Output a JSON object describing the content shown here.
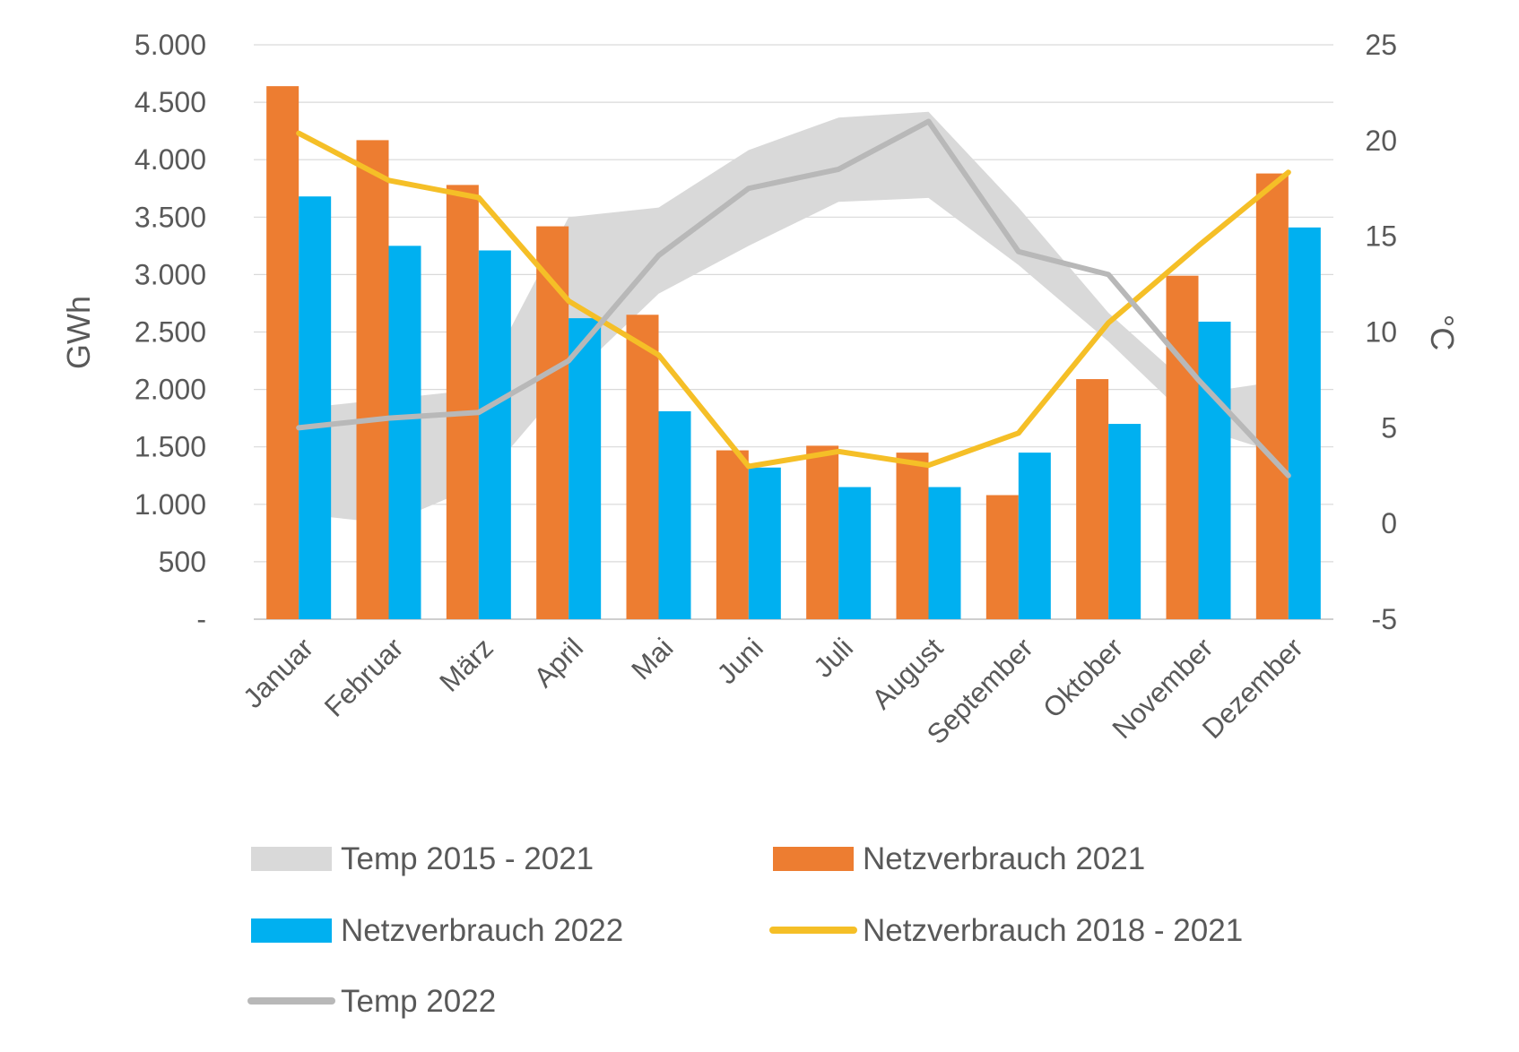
{
  "chart_data": {
    "type": "bar",
    "title": "",
    "categories": [
      "Januar",
      "Februar",
      "März",
      "April",
      "Mai",
      "Juni",
      "Juli",
      "August",
      "September",
      "Oktober",
      "November",
      "Dezember"
    ],
    "y_left": {
      "label": "GWh",
      "ylim": [
        0,
        5000
      ],
      "ticks": [
        0,
        500,
        1000,
        1500,
        2000,
        2500,
        3000,
        3500,
        4000,
        4500,
        5000
      ],
      "tick_labels": [
        "-",
        "500",
        "1.000",
        "1.500",
        "2.000",
        "2.500",
        "3.000",
        "3.500",
        "4.000",
        "4.500",
        "5.000"
      ]
    },
    "y_right": {
      "label": "°C",
      "ylim": [
        -5,
        25
      ],
      "ticks": [
        -5,
        0,
        5,
        10,
        15,
        20,
        25
      ],
      "tick_labels": [
        "-5",
        "0",
        "5",
        "10",
        "15",
        "20",
        "25"
      ]
    },
    "grid": true,
    "legend_position": "bottom",
    "series": [
      {
        "name": "Temp 2015 - 2021",
        "kind": "range-area",
        "axis": "right",
        "color": "#d9d9d9",
        "low": [
          0.5,
          0.0,
          2.0,
          7.5,
          12.0,
          14.5,
          16.8,
          17.0,
          13.5,
          9.5,
          5.0,
          3.5
        ],
        "high": [
          6.0,
          6.5,
          7.0,
          16.0,
          16.5,
          19.5,
          21.2,
          21.5,
          16.5,
          11.0,
          6.8,
          7.5
        ]
      },
      {
        "name": "Netzverbrauch 2021",
        "kind": "bar",
        "axis": "left",
        "color": "#ed7d31",
        "values": [
          4640,
          4170,
          3780,
          3420,
          2650,
          1470,
          1510,
          1450,
          1080,
          2090,
          2990,
          3880
        ]
      },
      {
        "name": "Netzverbrauch 2022",
        "kind": "bar",
        "axis": "left",
        "color": "#00b0f0",
        "values": [
          3680,
          3250,
          3210,
          2620,
          1810,
          1320,
          1150,
          1150,
          1450,
          1700,
          2590,
          3410
        ]
      },
      {
        "name": "Netzverbrauch 2018 - 2021",
        "kind": "line",
        "axis": "left",
        "color": "#f5bf27",
        "values": [
          4230,
          3820,
          3670,
          2770,
          2300,
          1330,
          1460,
          1340,
          1620,
          2580,
          3250,
          3890
        ]
      },
      {
        "name": "Temp 2022",
        "kind": "line",
        "axis": "right",
        "color": "#b8b8b8",
        "values": [
          5.0,
          5.5,
          5.8,
          8.5,
          14.0,
          17.5,
          18.5,
          21.0,
          14.2,
          13.0,
          7.5,
          2.5
        ]
      }
    ]
  }
}
